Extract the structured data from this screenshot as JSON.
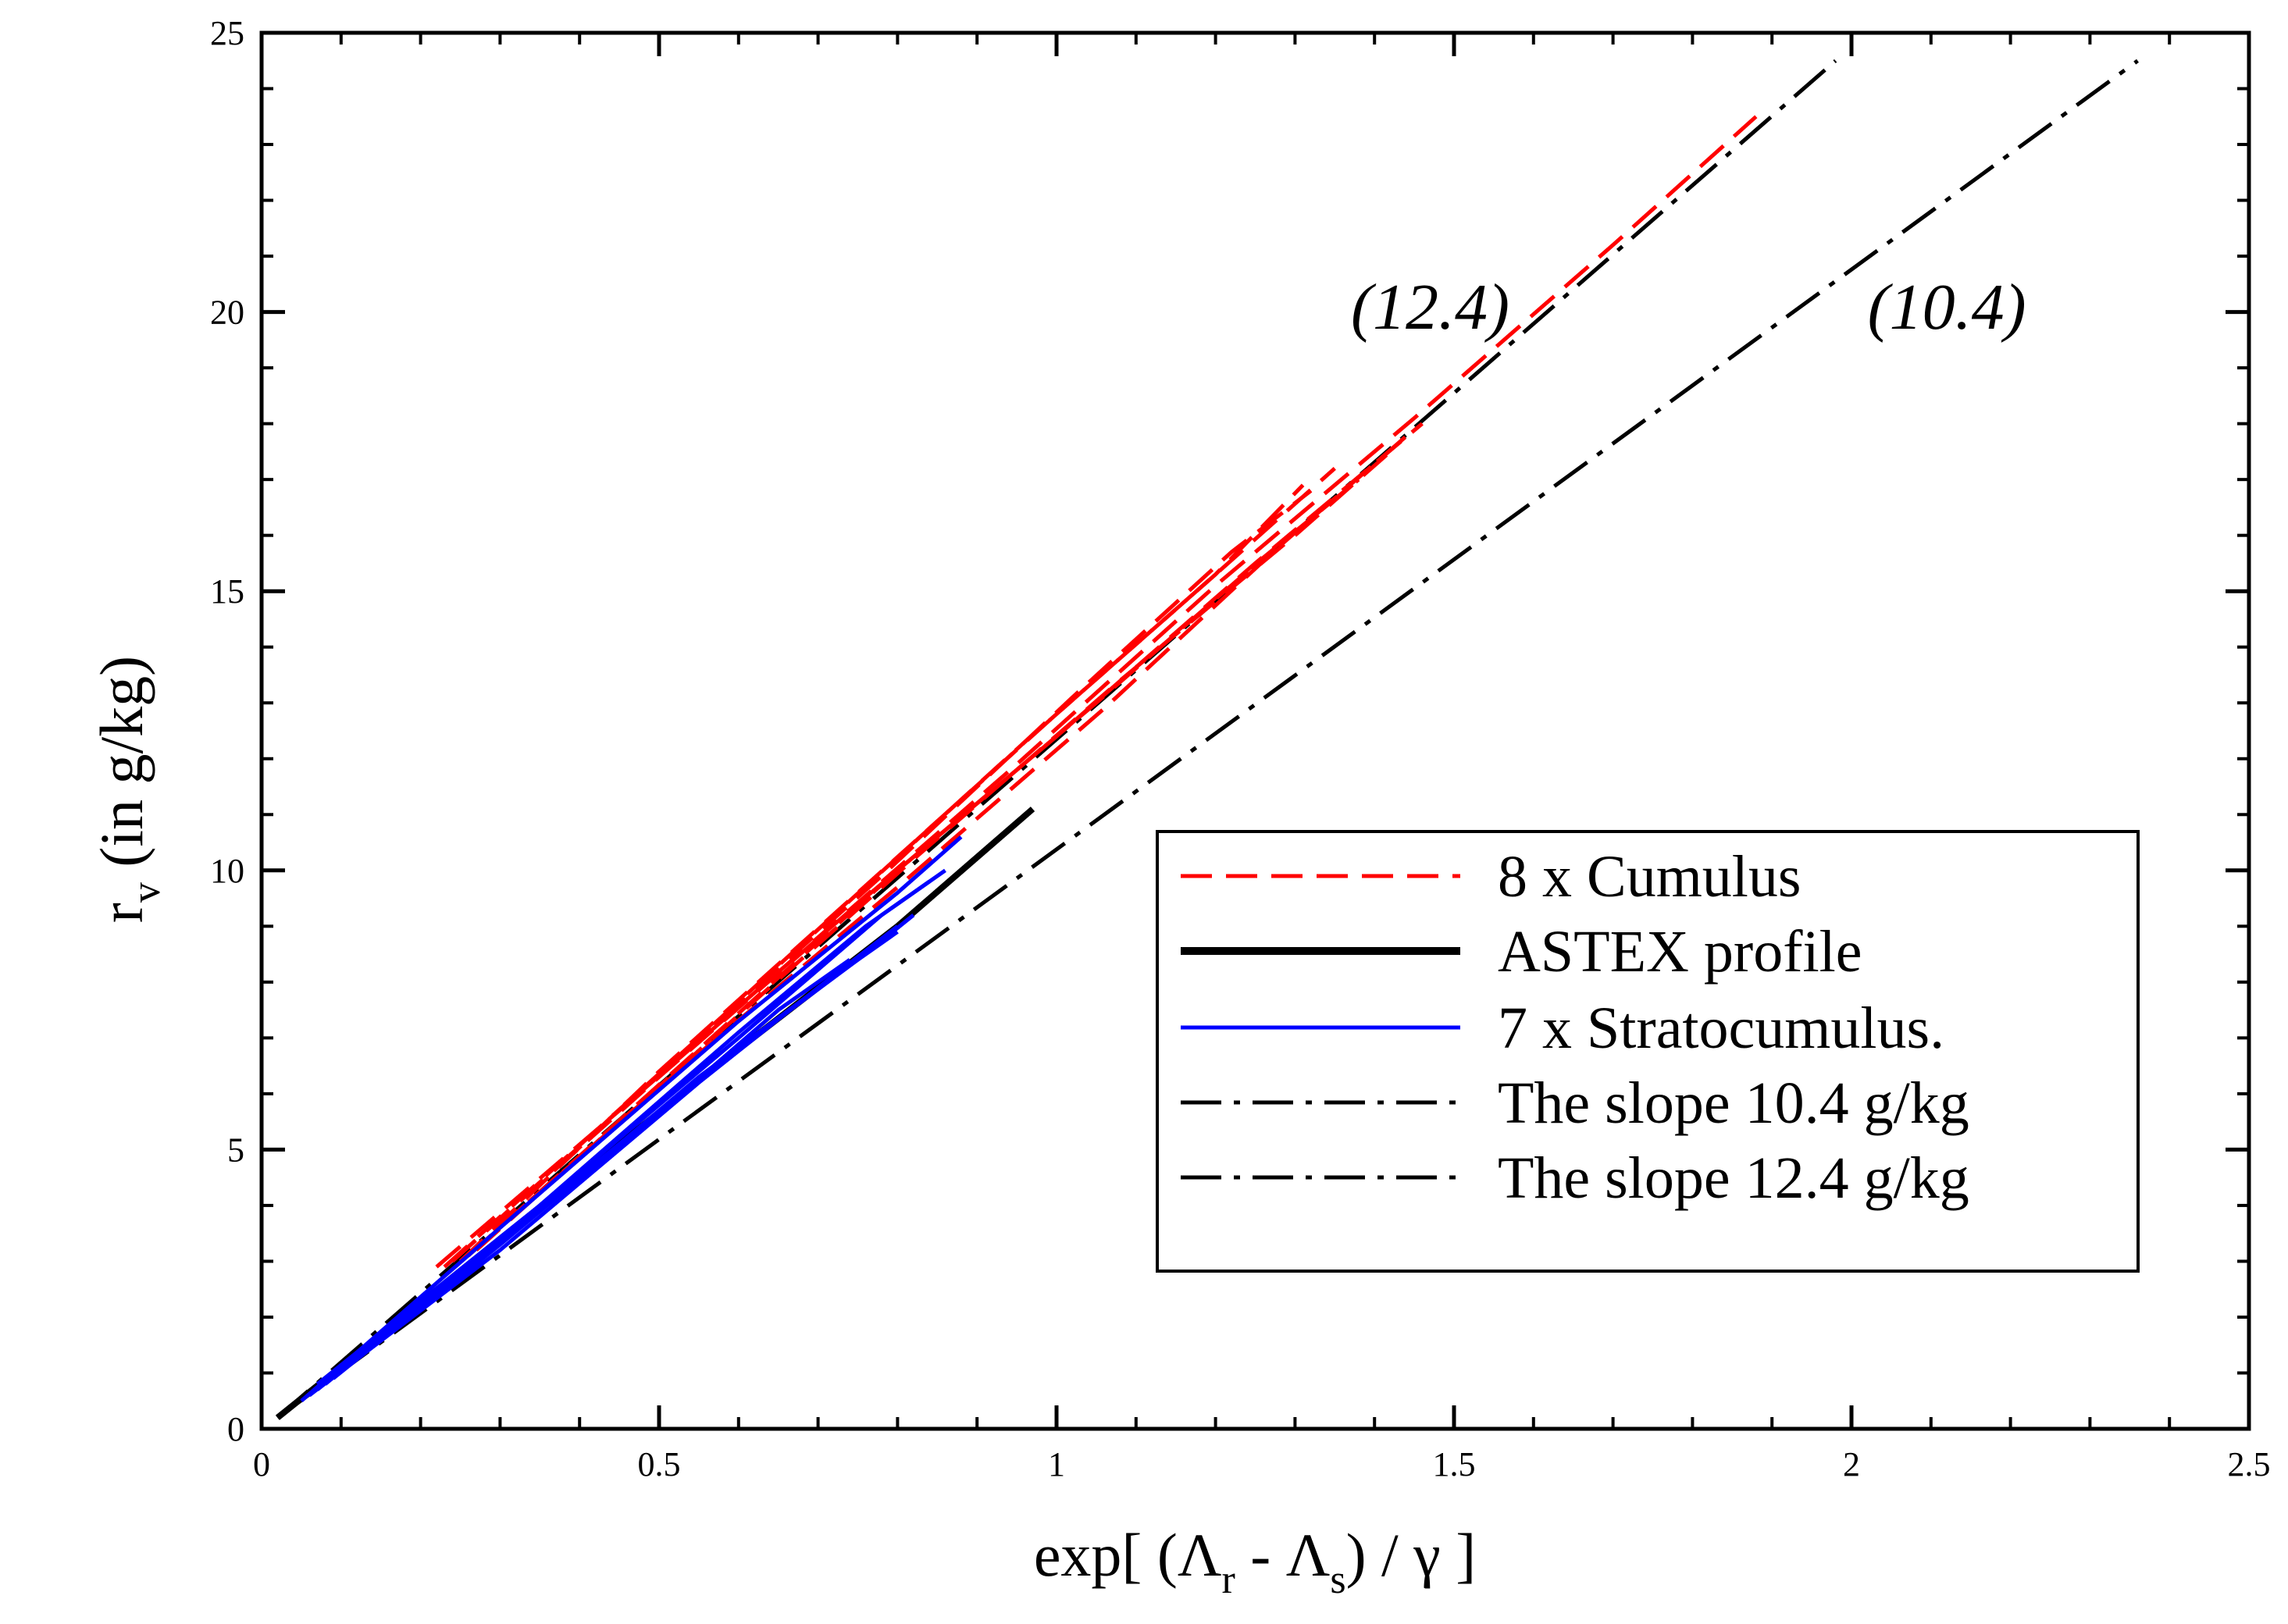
{
  "chart_data": {
    "type": "line",
    "xlabel": "exp[ (Λr - Λs) / γ ]",
    "ylabel": "rv (in g/kg)",
    "xlim": [
      0,
      2.5
    ],
    "ylim": [
      0,
      25
    ],
    "x_major_ticks": [
      0,
      0.5,
      1,
      1.5,
      2,
      2.5
    ],
    "x_tick_labels": [
      "0",
      "0.5",
      "1",
      "1.5",
      "2",
      "2.5"
    ],
    "y_major_ticks": [
      0,
      5,
      10,
      15,
      20,
      25
    ],
    "y_tick_labels": [
      "0",
      "5",
      "10",
      "15",
      "20",
      "25"
    ],
    "x_minor_step": 0.1,
    "y_minor_step": 1,
    "grid": false,
    "legend_position": "bottom-right",
    "annotations": [
      {
        "text": "(12.4)",
        "x": 1.47,
        "y": 19.7
      },
      {
        "text": "(10.4)",
        "x": 2.12,
        "y": 19.7
      }
    ],
    "series": [
      {
        "name": "8 x Cumulus",
        "legend": "8 x Cumulus",
        "color": "#ff0000",
        "style": "dashed",
        "width": 5,
        "curves": [
          {
            "x": [
              0.22,
              0.45,
              0.7,
              0.95,
              1.2,
              1.45,
              1.7,
              1.88
            ],
            "y": [
              2.9,
              5.7,
              8.8,
              11.9,
              15.1,
              18.1,
              21.2,
              23.5
            ]
          },
          {
            "x": [
              0.24,
              0.5,
              0.75,
              1.0,
              1.25,
              1.46
            ],
            "y": [
              3.0,
              6.3,
              9.4,
              12.4,
              15.5,
              18.0
            ]
          },
          {
            "x": [
              0.23,
              0.48,
              0.72,
              0.96,
              1.2,
              1.35
            ],
            "y": [
              2.9,
              6.1,
              9.2,
              12.3,
              15.3,
              17.2
            ]
          },
          {
            "x": [
              0.25,
              0.5,
              0.75,
              1.0,
              1.2,
              1.31
            ],
            "y": [
              3.0,
              6.4,
              9.6,
              12.8,
              15.3,
              16.9
            ]
          },
          {
            "x": [
              0.26,
              0.55,
              0.8,
              1.05,
              1.26,
              1.38
            ],
            "y": [
              3.1,
              6.8,
              10.0,
              13.0,
              15.6,
              17.0
            ]
          },
          {
            "x": [
              0.24,
              0.52,
              0.78,
              1.02,
              1.22,
              1.32
            ],
            "y": [
              3.0,
              6.6,
              9.9,
              13.1,
              15.7,
              16.8
            ]
          },
          {
            "x": [
              0.25,
              0.54,
              0.8,
              1.06,
              1.28,
              1.45
            ],
            "y": [
              3.0,
              6.6,
              9.7,
              12.9,
              15.8,
              17.9
            ]
          },
          {
            "x": [
              0.27,
              0.56,
              0.82,
              1.08,
              1.3,
              1.42
            ],
            "y": [
              3.2,
              6.9,
              10.2,
              13.4,
              16.0,
              17.5
            ]
          }
        ]
      },
      {
        "name": "ASTEX profile",
        "legend": "ASTEX profile",
        "color": "#000000",
        "style": "solid",
        "width": 8,
        "curves": [
          {
            "x": [
              0.02,
              0.3,
              0.6,
              0.8,
              0.97
            ],
            "y": [
              0.2,
              3.4,
              6.8,
              9.0,
              11.1
            ]
          }
        ]
      },
      {
        "name": "7 x Stratocumulus.",
        "legend": "7 x Stratocumulus.",
        "color": "#0000ff",
        "style": "solid",
        "width": 5,
        "curves": [
          {
            "x": [
              0.05,
              0.3,
              0.6,
              0.8,
              0.88
            ],
            "y": [
              0.5,
              3.6,
              7.3,
              9.6,
              10.6
            ]
          },
          {
            "x": [
              0.06,
              0.3,
              0.6,
              0.78,
              0.84
            ],
            "y": [
              0.6,
              3.4,
              7.0,
              9.2,
              9.8
            ]
          },
          {
            "x": [
              0.06,
              0.3,
              0.55,
              0.7,
              0.8
            ],
            "y": [
              0.6,
              3.2,
              6.2,
              7.9,
              9.0
            ]
          },
          {
            "x": [
              0.07,
              0.3,
              0.55,
              0.72,
              0.8
            ],
            "y": [
              0.7,
              3.3,
              6.3,
              8.1,
              8.9
            ]
          },
          {
            "x": [
              0.08,
              0.32,
              0.58,
              0.75,
              0.82
            ],
            "y": [
              0.8,
              3.6,
              6.6,
              8.4,
              9.2
            ]
          },
          {
            "x": [
              0.07,
              0.35,
              0.6,
              0.76,
              0.86
            ],
            "y": [
              0.8,
              4.0,
              7.1,
              9.0,
              10.0
            ]
          },
          {
            "x": [
              0.09,
              0.3,
              0.52,
              0.65,
              0.74
            ],
            "y": [
              0.9,
              3.3,
              5.9,
              7.5,
              8.4
            ]
          }
        ]
      },
      {
        "name": "slope 10.4",
        "legend": "The slope 10.4 g/kg",
        "color": "#000000",
        "style": "dashdot",
        "width": 5,
        "curves": [
          {
            "x": [
              0.02,
              2.36
            ],
            "y": [
              0.2,
              24.5
            ]
          }
        ]
      },
      {
        "name": "slope 12.4",
        "legend": "The slope 12.4 g/kg",
        "color": "#000000",
        "style": "dashdot",
        "width": 5,
        "curves": [
          {
            "x": [
              0.02,
              1.98
            ],
            "y": [
              0.2,
              24.5
            ]
          }
        ]
      }
    ]
  }
}
